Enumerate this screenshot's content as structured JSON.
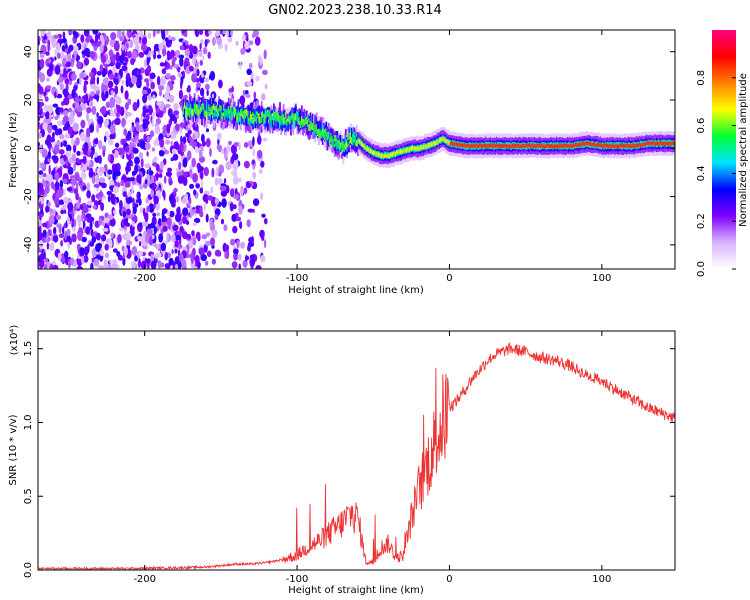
{
  "figure": {
    "title": "GN02.2023.238.10.33.R14"
  },
  "chart_data": [
    {
      "type": "heatmap",
      "xlabel": "Height of straight line (km)",
      "ylabel": "Frequency (Hz)",
      "xlim": [
        -270,
        148
      ],
      "ylim": [
        -50,
        49
      ],
      "xticks": [
        -200,
        -100,
        0,
        100
      ],
      "yticks": [
        -40,
        -20,
        0,
        20,
        40
      ],
      "colorbar": {
        "label": "Normalized spectral amplitude",
        "range": [
          0,
          1
        ],
        "ticks": [
          0.0,
          0.2,
          0.4,
          0.6,
          0.8
        ],
        "colormap": [
          "#ffffff",
          "#d9b3ff",
          "#8000ff",
          "#0000ff",
          "#00e5ff",
          "#00ff33",
          "#ffff00",
          "#ff8000",
          "#ff0000",
          "#ff0080"
        ]
      },
      "ridge": {
        "x": [
          -160,
          -150,
          -140,
          -130,
          -120,
          -110,
          -100,
          -92,
          -85,
          -80,
          -75,
          -70,
          -65,
          -60,
          -55,
          -50,
          -45,
          -40,
          -35,
          -30,
          -25,
          -20,
          -15,
          -10,
          -5,
          0,
          10,
          20,
          40,
          60,
          70,
          80,
          90,
          100,
          110,
          120,
          130,
          140,
          148
        ],
        "y": [
          16,
          15,
          14,
          13,
          13,
          12,
          12,
          10,
          7,
          5,
          2,
          0,
          5,
          3,
          0,
          -2,
          -3,
          -3,
          -2,
          -1,
          0,
          0,
          1,
          2,
          4,
          2,
          1,
          1,
          1,
          1,
          1,
          1,
          2,
          1,
          1,
          1,
          2,
          2,
          2
        ]
      }
    },
    {
      "type": "line",
      "xlabel": "Height of straight line (km)",
      "ylabel": "SNR (10 * v/v)",
      "yscale_label": "(x10⁴)",
      "xlim": [
        -270,
        148
      ],
      "ylim": [
        0,
        1.62
      ],
      "xticks": [
        -200,
        -100,
        0,
        100
      ],
      "yticks": [
        0.0,
        0.5,
        1.0,
        1.5
      ],
      "ytick_labels": [
        "0.0",
        "0.5",
        "1.0",
        "1.5"
      ],
      "color": "#ee3333",
      "series": [
        {
          "x": [
            -270,
            -240,
            -210,
            -180,
            -160,
            -150,
            -140,
            -130,
            -120,
            -110,
            -100,
            -95,
            -90,
            -85,
            -80,
            -75,
            -70,
            -65,
            -60,
            -55,
            -50,
            -45,
            -40,
            -35,
            -30,
            -25,
            -20,
            -15,
            -10,
            -5,
            0,
            5,
            10,
            15,
            20,
            25,
            30,
            35,
            40,
            50,
            60,
            70,
            80,
            90,
            100,
            110,
            120,
            130,
            140,
            148
          ],
          "y": [
            0.01,
            0.01,
            0.01,
            0.015,
            0.02,
            0.03,
            0.04,
            0.04,
            0.05,
            0.07,
            0.1,
            0.14,
            0.17,
            0.2,
            0.24,
            0.28,
            0.32,
            0.38,
            0.35,
            0.06,
            0.05,
            0.15,
            0.18,
            0.08,
            0.1,
            0.35,
            0.55,
            0.7,
            0.85,
            1.0,
            1.1,
            1.15,
            1.22,
            1.3,
            1.36,
            1.42,
            1.46,
            1.48,
            1.5,
            1.48,
            1.44,
            1.42,
            1.38,
            1.32,
            1.28,
            1.22,
            1.16,
            1.1,
            1.06,
            1.03
          ]
        }
      ]
    }
  ]
}
